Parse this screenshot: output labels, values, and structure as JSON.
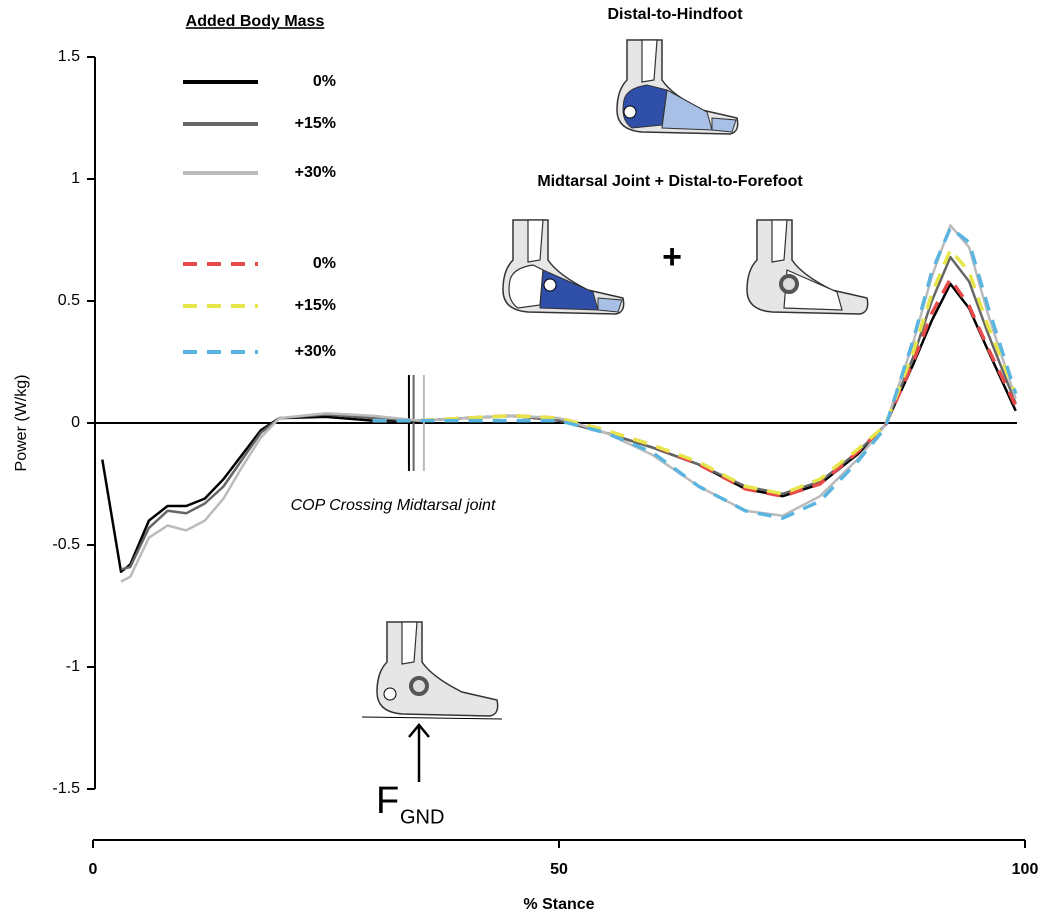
{
  "chart_data": {
    "type": "line",
    "legend_title": "Added Body Mass",
    "annotations": [
      "Distal-to-Hindfoot",
      "Midtarsal Joint + Distal-to-Forefoot",
      "+",
      "COP Crossing Midtarsal joint",
      "F",
      "GND"
    ],
    "xlabel": "% Stance",
    "ylabel": "Power (W/kg)",
    "x": [
      1,
      3,
      4,
      6,
      8,
      10,
      12,
      14,
      16,
      18,
      20,
      25,
      30,
      35,
      40,
      45,
      50,
      55,
      60,
      65,
      70,
      74,
      78,
      82,
      85,
      88,
      90,
      92,
      94,
      96,
      99
    ],
    "series": [
      {
        "name": "0%",
        "color": "#000000",
        "dashed": false,
        "values": [
          -0.15,
          -0.61,
          -0.58,
          -0.4,
          -0.34,
          -0.34,
          -0.31,
          -0.23,
          -0.13,
          -0.03,
          0.02,
          0.025,
          0.01,
          0.01,
          0.02,
          0.03,
          0.01,
          -0.04,
          -0.1,
          -0.17,
          -0.27,
          -0.3,
          -0.25,
          -0.13,
          -0.01,
          0.24,
          0.42,
          0.57,
          0.47,
          0.3,
          0.05
        ]
      },
      {
        "name": "+15%",
        "color": "#666666",
        "dashed": false,
        "values": [
          null,
          -0.6,
          -0.59,
          -0.43,
          -0.36,
          -0.37,
          -0.33,
          -0.26,
          -0.15,
          -0.04,
          0.02,
          0.035,
          0.02,
          0.01,
          0.02,
          0.03,
          0.01,
          -0.04,
          -0.1,
          -0.17,
          -0.26,
          -0.29,
          -0.24,
          -0.12,
          -0.01,
          0.27,
          0.5,
          0.68,
          0.58,
          0.37,
          0.08
        ]
      },
      {
        "name": "+30%",
        "color": "#bbbbbb",
        "dashed": false,
        "values": [
          null,
          -0.65,
          -0.63,
          -0.47,
          -0.42,
          -0.44,
          -0.4,
          -0.31,
          -0.18,
          -0.06,
          0.02,
          0.04,
          0.03,
          0.01,
          0.02,
          0.03,
          0.02,
          -0.04,
          -0.13,
          -0.26,
          -0.36,
          -0.38,
          -0.3,
          -0.15,
          -0.01,
          0.33,
          0.6,
          0.81,
          0.72,
          0.45,
          0.1
        ]
      },
      {
        "name": "0%",
        "color": "#e84a4a",
        "dashed": true,
        "values": [
          null,
          null,
          null,
          null,
          null,
          null,
          null,
          null,
          null,
          null,
          null,
          null,
          0.01,
          0.01,
          0.02,
          0.03,
          0.02,
          -0.03,
          -0.09,
          -0.17,
          -0.27,
          -0.3,
          -0.25,
          -0.12,
          -0.01,
          0.25,
          0.45,
          0.59,
          0.48,
          0.31,
          0.07
        ]
      },
      {
        "name": "+15%",
        "color": "#e6e64a",
        "dashed": true,
        "values": [
          null,
          null,
          null,
          null,
          null,
          null,
          null,
          null,
          null,
          null,
          null,
          null,
          0.01,
          0.01,
          0.02,
          0.03,
          0.02,
          -0.03,
          -0.09,
          -0.16,
          -0.26,
          -0.29,
          -0.23,
          -0.11,
          -0.01,
          0.29,
          0.53,
          0.71,
          0.62,
          0.4,
          0.12
        ]
      },
      {
        "name": "+30%",
        "color": "#5ab4e0",
        "dashed": true,
        "values": [
          null,
          null,
          null,
          null,
          null,
          null,
          null,
          null,
          null,
          null,
          null,
          null,
          0.01,
          0.01,
          0.01,
          0.01,
          0.01,
          -0.04,
          -0.12,
          -0.26,
          -0.36,
          -0.39,
          -0.32,
          -0.16,
          -0.02,
          0.34,
          0.62,
          0.8,
          0.74,
          0.48,
          0.12
        ]
      }
    ],
    "cop_crossing": [
      33.9,
      34.4,
      35.5
    ],
    "reference_line": 0,
    "xlim": [
      0,
      100
    ],
    "xticks": [
      0,
      50,
      100
    ],
    "ylim": [
      -1.5,
      1.5
    ],
    "yticks": [
      1.5,
      1,
      0.5,
      0,
      -0.5,
      -1,
      -1.5
    ]
  }
}
